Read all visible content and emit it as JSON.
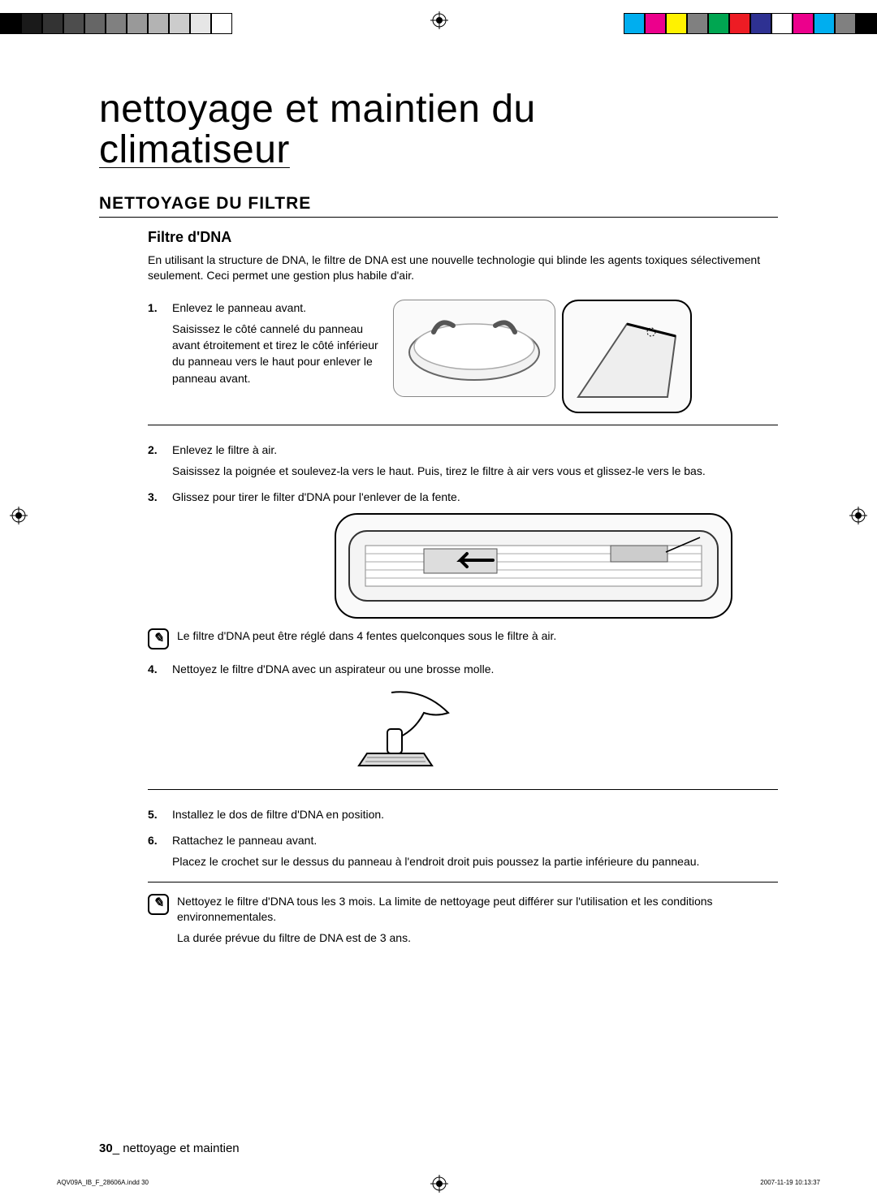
{
  "colorbar": {
    "left_colors": [
      "#000000",
      "#1a1a1a",
      "#333333",
      "#4d4d4d",
      "#666666",
      "#808080",
      "#999999",
      "#b3b3b3",
      "#cccccc",
      "#e6e6e6",
      "#ffffff"
    ],
    "right_colors": [
      "#00aeef",
      "#ec008c",
      "#fff200",
      "#808080",
      "#00a651",
      "#ed1c24",
      "#2e3192",
      "#ffffff",
      "#ec008c",
      "#00aeef",
      "#808080",
      "#000000"
    ]
  },
  "chapter_title_line1": "nettoyage et maintien du",
  "chapter_title_line2": "climatiseur",
  "section_heading": "NETTOYAGE DU FILTRE",
  "sub_heading": "Filtre d'DNA",
  "intro": "En utilisant la structure de DNA, le filtre de DNA est une nouvelle technologie qui blinde les agents toxiques sélectivement seulement. Ceci permet une gestion plus habile d'air.",
  "steps": {
    "s1_title": "Enlevez le panneau avant.",
    "s1_body": "Saisissez le côté cannelé du panneau avant étroitement et tirez le côté inférieur du panneau vers le haut pour enlever le panneau avant.",
    "s2_title": "Enlevez le filtre à air.",
    "s2_body": "Saisissez la poignée et soulevez-la vers le haut. Puis, tirez le filtre à air vers vous et glissez-le vers le bas.",
    "s3_title": "Glissez pour tirer le filter d'DNA pour l'enlever de la fente.",
    "s4_title": "Nettoyez le filtre d'DNA avec un aspirateur ou une brosse molle.",
    "s5_title": "Installez le dos de filtre d'DNA en position.",
    "s6_title": "Rattachez le panneau avant.",
    "s6_body": "Placez le crochet sur le dessus du panneau à l'endroit droit puis poussez la partie inférieure du panneau."
  },
  "note1": "Le filtre d'DNA peut être réglé dans 4 fentes quelconques sous le filtre à air.",
  "note2_line1": "Nettoyez le filtre d'DNA tous les 3 mois. La limite de nettoyage peut différer sur l'utilisation et les conditions environnementales.",
  "note2_line2": "La durée prévue du filtre de DNA est de 3 ans.",
  "figure_alt": {
    "panel_remove": "illustration — retrait panneau",
    "panel_detail": "détail",
    "unit_open": "illustration — intérieur de l'unité",
    "brush": "illustration — brosse"
  },
  "footer_page": "30",
  "footer_text": "_ nettoyage et maintien",
  "slug_left": "AQV09A_IB_F_28606A.indd   30",
  "slug_right": "2007-11-19   10:13:37"
}
